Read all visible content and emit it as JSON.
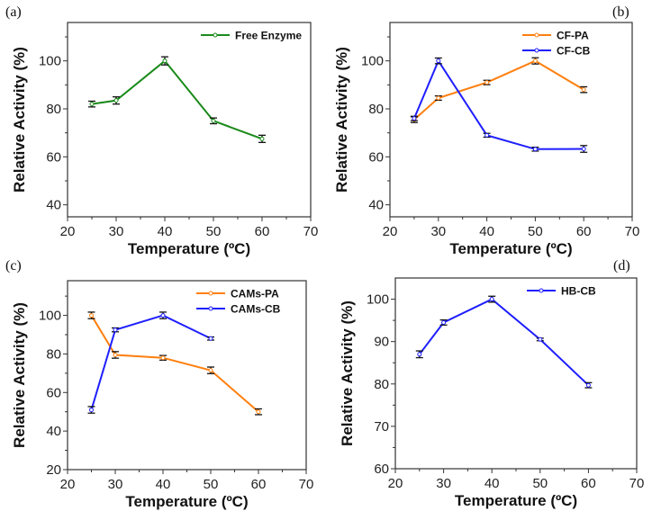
{
  "chart_data": [
    {
      "type": "line",
      "panel_label": "(a)",
      "xlabel": "Temperature (ºC)",
      "ylabel": "Relative Activity (%)",
      "xlim": [
        20,
        70
      ],
      "ylim": [
        35,
        116
      ],
      "xticks": [
        20,
        30,
        40,
        50,
        60,
        70
      ],
      "yticks": [
        40,
        60,
        80,
        100
      ],
      "legend_position": "top-right",
      "series": [
        {
          "name": "Free Enzyme",
          "color": "#1a8a1a",
          "x": [
            25,
            30,
            40,
            50,
            60
          ],
          "y": [
            82,
            83.5,
            100,
            75,
            67.5
          ],
          "err": [
            1.2,
            1.5,
            1.7,
            1.2,
            1.5
          ]
        }
      ]
    },
    {
      "type": "line",
      "panel_label": "(b)",
      "xlabel": "Temperature (ºC)",
      "ylabel": "Relative Activity (%)",
      "xlim": [
        20,
        70
      ],
      "ylim": [
        35,
        116
      ],
      "xticks": [
        20,
        30,
        40,
        50,
        60,
        70
      ],
      "yticks": [
        40,
        60,
        80,
        100
      ],
      "legend_position": "top-right",
      "series": [
        {
          "name": "CF-PA",
          "color": "#ff7f0e",
          "x": [
            25,
            30,
            40,
            50,
            60
          ],
          "y": [
            75.5,
            84.5,
            91,
            100,
            88
          ],
          "err": [
            1.2,
            0.9,
            0.9,
            1.3,
            1.2
          ]
        },
        {
          "name": "CF-CB",
          "color": "#1f1fff",
          "x": [
            25,
            30,
            40,
            50,
            60
          ],
          "y": [
            76,
            100,
            69,
            63.2,
            63.3
          ],
          "err": [
            0.9,
            1.2,
            0.8,
            0.8,
            1.4
          ]
        }
      ]
    },
    {
      "type": "line",
      "panel_label": "(c)",
      "xlabel": "Temperature (ºC)",
      "ylabel": "Relative Activity (%)",
      "xlim": [
        20,
        70
      ],
      "ylim": [
        20,
        118
      ],
      "xticks": [
        20,
        30,
        40,
        50,
        60,
        70
      ],
      "yticks": [
        20,
        40,
        60,
        80,
        100
      ],
      "legend_position": "top-right",
      "series": [
        {
          "name": "CAMs-PA",
          "color": "#ff7f0e",
          "x": [
            25,
            30,
            40,
            50,
            60
          ],
          "y": [
            100,
            79.5,
            78,
            71.5,
            50
          ],
          "err": [
            1.7,
            1.7,
            1.2,
            1.7,
            1.5
          ]
        },
        {
          "name": "CAMs-CB",
          "color": "#1f1fff",
          "x": [
            25,
            30,
            40,
            50
          ],
          "y": [
            51,
            92.5,
            100,
            88
          ],
          "err": [
            1.7,
            1.0,
            1.7,
            0.8
          ]
        }
      ]
    },
    {
      "type": "line",
      "panel_label": "(d)",
      "xlabel": "Temperature (ºC)",
      "ylabel": "Relative Activity (%)",
      "xlim": [
        20,
        70
      ],
      "ylim": [
        60,
        105
      ],
      "xticks": [
        20,
        30,
        40,
        50,
        60,
        70
      ],
      "yticks": [
        60,
        70,
        80,
        90,
        100
      ],
      "legend_position": "top-right",
      "series": [
        {
          "name": "HB-CB",
          "color": "#1f1fff",
          "x": [
            25,
            30,
            40,
            50,
            60
          ],
          "y": [
            87,
            94.5,
            100,
            90.5,
            79.7
          ],
          "err": [
            0.8,
            0.6,
            0.7,
            0.3,
            0.6
          ]
        }
      ]
    }
  ]
}
